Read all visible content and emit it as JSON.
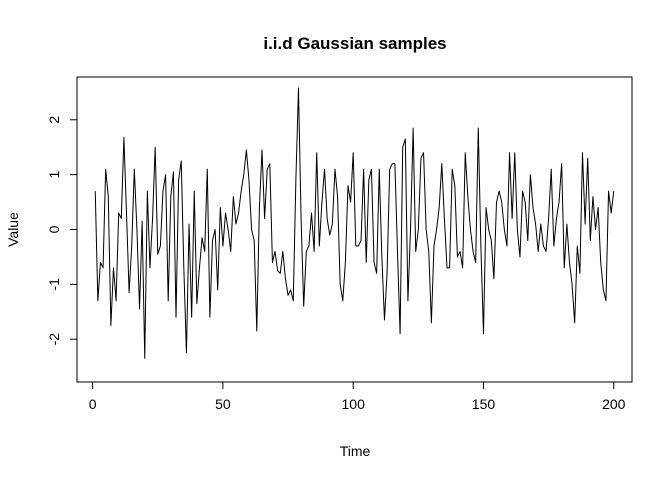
{
  "chart_data": {
    "type": "line",
    "title": "i.i.d Gaussian samples",
    "xlabel": "Time",
    "ylabel": "Value",
    "xlim": [
      -6,
      207
    ],
    "ylim": [
      -2.78,
      2.78
    ],
    "x_ticks": [
      0,
      50,
      100,
      150,
      200
    ],
    "y_ticks": [
      -2,
      -1,
      0,
      1,
      2
    ],
    "grid": false,
    "line_color": "#000000",
    "x_start": 1,
    "values": [
      0.7,
      -1.3,
      -0.6,
      -0.7,
      1.1,
      0.6,
      -1.75,
      -0.7,
      -1.3,
      0.3,
      0.2,
      1.68,
      0.3,
      -1.15,
      -0.3,
      1.1,
      0.0,
      -1.45,
      0.15,
      -2.35,
      0.7,
      -0.7,
      0.2,
      1.5,
      -0.45,
      -0.3,
      0.7,
      1.0,
      -1.3,
      0.6,
      1.05,
      -1.6,
      0.9,
      1.25,
      -0.7,
      -2.25,
      0.1,
      -1.6,
      0.7,
      -1.35,
      -0.7,
      -0.15,
      -0.4,
      1.1,
      -1.6,
      -0.2,
      0.0,
      -1.1,
      0.4,
      -0.3,
      0.3,
      0.0,
      -0.4,
      0.6,
      0.1,
      0.3,
      0.7,
      1.0,
      1.45,
      0.9,
      0.0,
      -0.2,
      -1.85,
      0.4,
      1.45,
      0.2,
      1.1,
      1.2,
      -0.6,
      -0.4,
      -0.75,
      -0.8,
      -0.4,
      -0.9,
      -1.2,
      -1.1,
      -1.3,
      0.9,
      2.58,
      0.2,
      -1.4,
      -0.4,
      -0.3,
      0.3,
      -0.4,
      1.4,
      -0.3,
      0.5,
      1.1,
      0.2,
      -0.1,
      0.1,
      1.1,
      0.6,
      -1.0,
      -1.3,
      -0.6,
      0.8,
      0.5,
      1.4,
      -0.3,
      -0.3,
      -0.2,
      1.1,
      -0.6,
      0.9,
      1.1,
      -0.6,
      -0.8,
      1.1,
      -0.5,
      -1.65,
      -0.8,
      1.1,
      1.2,
      1.2,
      -0.4,
      -1.9,
      1.5,
      1.65,
      -1.3,
      0.0,
      1.85,
      -0.4,
      0.0,
      1.3,
      1.4,
      0.0,
      -0.4,
      -1.7,
      -0.3,
      0.0,
      0.4,
      1.2,
      0.2,
      -0.7,
      -0.7,
      1.1,
      0.8,
      -0.5,
      -0.4,
      -0.7,
      1.4,
      0.6,
      0.0,
      -0.4,
      -0.6,
      1.85,
      -0.3,
      -1.9,
      0.4,
      0.0,
      -0.2,
      -0.9,
      0.5,
      0.7,
      0.5,
      0.0,
      -0.3,
      1.4,
      0.2,
      1.4,
      0.0,
      -0.5,
      0.7,
      0.5,
      -0.2,
      1.0,
      0.4,
      0.1,
      -0.4,
      0.1,
      -0.3,
      -0.4,
      0.2,
      1.1,
      -0.3,
      0.2,
      0.5,
      1.2,
      -0.7,
      0.1,
      -0.6,
      -1.0,
      -1.7,
      -0.3,
      -0.8,
      1.4,
      0.1,
      1.3,
      -0.2,
      0.6,
      0.0,
      0.4,
      -0.6,
      -1.1,
      -1.3,
      0.7,
      0.3,
      0.7
    ]
  }
}
